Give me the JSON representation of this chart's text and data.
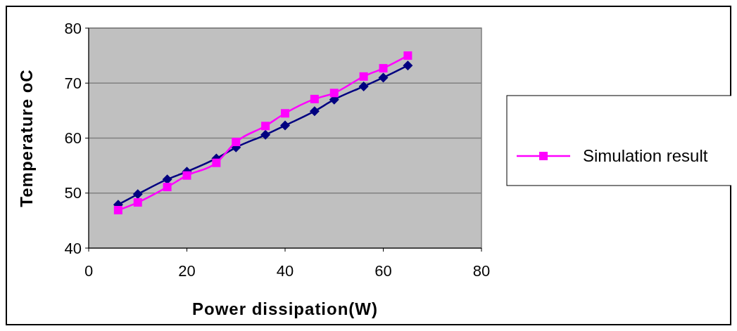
{
  "chart_data": {
    "type": "line",
    "xlabel": "Power dissipation(W)",
    "ylabel": "Temperature oC",
    "xlim": [
      0,
      80
    ],
    "xticks": [
      0,
      20,
      40,
      60,
      80
    ],
    "ylim": [
      40,
      80
    ],
    "yticks": [
      40,
      50,
      60,
      70,
      80
    ],
    "grid": "y",
    "legend": "right",
    "x": [
      6,
      10,
      16,
      20,
      26,
      30,
      36,
      40,
      46,
      50,
      56,
      60,
      65
    ],
    "series": [
      {
        "color": "#000080",
        "marker": "diamond",
        "values": [
          47.9,
          49.8,
          52.5,
          53.9,
          56.3,
          58.3,
          60.6,
          62.3,
          64.9,
          67.0,
          69.4,
          71.0,
          73.2
        ]
      },
      {
        "name": "Simulation result",
        "color": "#ff00ff",
        "marker": "square",
        "values": [
          46.9,
          48.3,
          51.1,
          53.2,
          55.5,
          59.3,
          62.2,
          64.5,
          67.1,
          68.2,
          71.2,
          72.7,
          75.0
        ]
      }
    ]
  }
}
